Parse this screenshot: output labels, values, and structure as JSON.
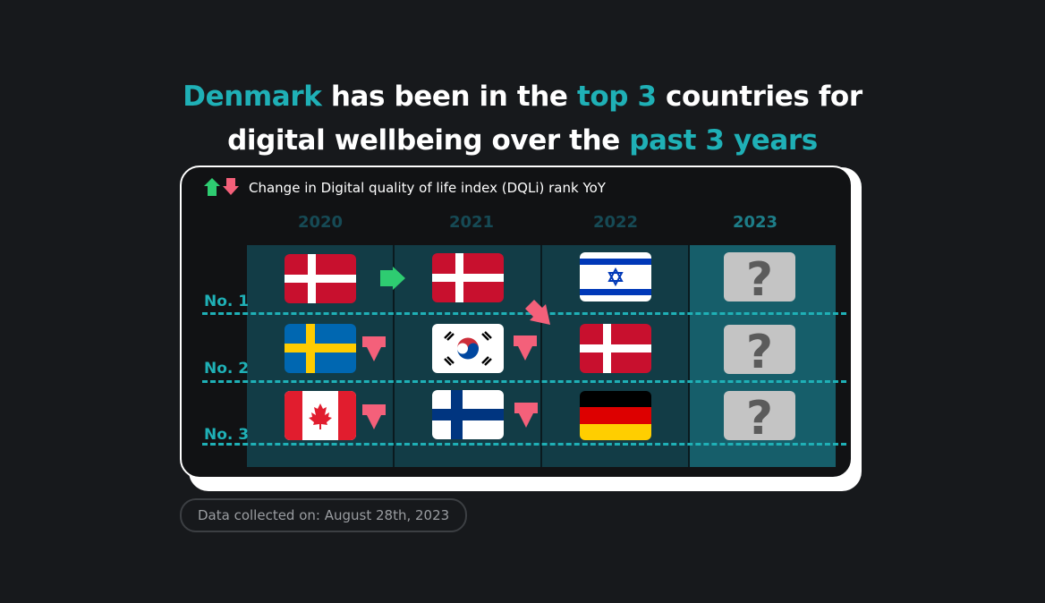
{
  "headline": {
    "country": "Denmark",
    "part1": " has been in the ",
    "highlight1": "top 3",
    "part2": " countries for",
    "part3": "digital wellbeing over the ",
    "highlight2": "past 3 years"
  },
  "legend": {
    "text": "Change in Digital quality of life index (DQLi) rank YoY",
    "up_icon": "green-up-arrow-icon",
    "down_icon": "red-down-arrow-icon"
  },
  "years": [
    "2020",
    "2021",
    "2022",
    "2023"
  ],
  "ranks": [
    "No. 1",
    "No. 2",
    "No. 3"
  ],
  "rankings": [
    [
      "denmark",
      "sweden",
      "canada"
    ],
    [
      "denmark",
      "south-korea",
      "finland"
    ],
    [
      "israel",
      "denmark",
      "germany"
    ],
    [
      "unknown",
      "unknown",
      "unknown"
    ]
  ],
  "unknown_mark": "?",
  "changes": {
    "up_color": "#2ecc71",
    "down_color": "#f4607a"
  },
  "footnote": "Data collected on: August 28th, 2023"
}
